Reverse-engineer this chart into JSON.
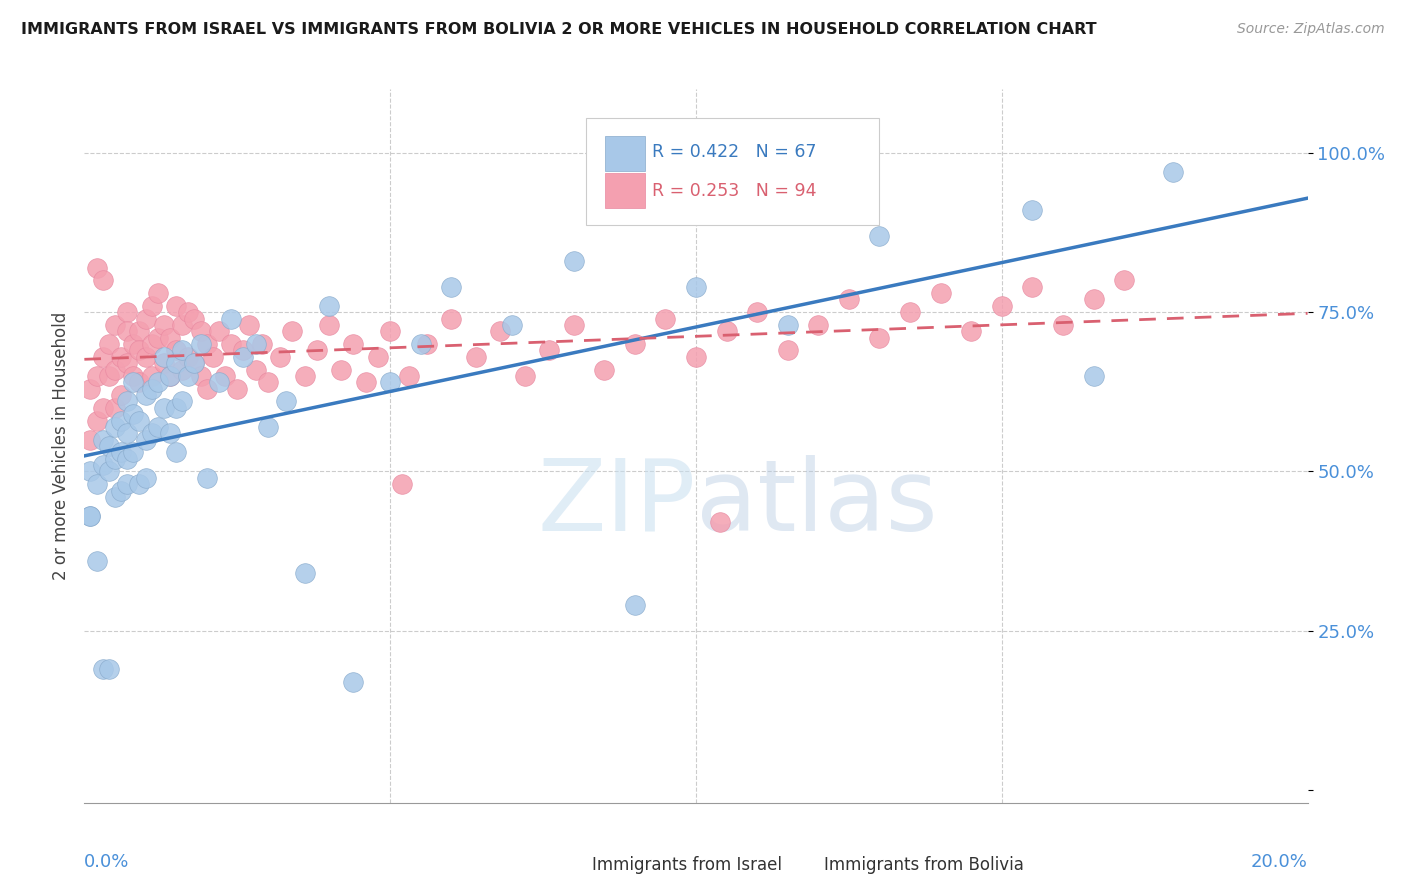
{
  "title": "IMMIGRANTS FROM ISRAEL VS IMMIGRANTS FROM BOLIVIA 2 OR MORE VEHICLES IN HOUSEHOLD CORRELATION CHART",
  "source": "Source: ZipAtlas.com",
  "ylabel": "2 or more Vehicles in Household",
  "watermark_zip": "ZIP",
  "watermark_atlas": "atlas",
  "legend_israel_text": "R = 0.422   N = 67",
  "legend_bolivia_text": "R = 0.253   N = 94",
  "color_israel": "#a8c8e8",
  "color_bolivia": "#f4a0b0",
  "line_israel": "#3a7abf",
  "line_bolivia": "#d96070",
  "color_tick_right": "#4a90d9",
  "xlim": [
    0.0,
    0.2
  ],
  "ylim": [
    -0.02,
    1.1
  ],
  "background_color": "#ffffff",
  "israel_x": [
    0.001,
    0.001,
    0.002,
    0.003,
    0.003,
    0.004,
    0.004,
    0.005,
    0.005,
    0.005,
    0.006,
    0.006,
    0.006,
    0.007,
    0.007,
    0.007,
    0.007,
    0.008,
    0.008,
    0.008,
    0.009,
    0.009,
    0.01,
    0.01,
    0.01,
    0.011,
    0.011,
    0.012,
    0.012,
    0.013,
    0.013,
    0.014,
    0.014,
    0.015,
    0.015,
    0.015,
    0.016,
    0.016,
    0.017,
    0.018,
    0.019,
    0.02,
    0.022,
    0.024,
    0.026,
    0.028,
    0.03,
    0.033,
    0.036,
    0.04,
    0.044,
    0.05,
    0.055,
    0.06,
    0.07,
    0.08,
    0.09,
    0.1,
    0.115,
    0.13,
    0.155,
    0.165,
    0.178,
    0.001,
    0.002,
    0.003,
    0.004
  ],
  "israel_y": [
    0.43,
    0.5,
    0.48,
    0.51,
    0.55,
    0.5,
    0.54,
    0.52,
    0.46,
    0.57,
    0.53,
    0.58,
    0.47,
    0.61,
    0.56,
    0.52,
    0.48,
    0.59,
    0.53,
    0.64,
    0.58,
    0.48,
    0.62,
    0.55,
    0.49,
    0.63,
    0.56,
    0.64,
    0.57,
    0.68,
    0.6,
    0.65,
    0.56,
    0.67,
    0.6,
    0.53,
    0.69,
    0.61,
    0.65,
    0.67,
    0.7,
    0.49,
    0.64,
    0.74,
    0.68,
    0.7,
    0.57,
    0.61,
    0.34,
    0.76,
    0.17,
    0.64,
    0.7,
    0.79,
    0.73,
    0.83,
    0.29,
    0.79,
    0.73,
    0.87,
    0.91,
    0.65,
    0.97,
    0.43,
    0.36,
    0.19,
    0.19
  ],
  "bolivia_x": [
    0.001,
    0.001,
    0.002,
    0.002,
    0.003,
    0.003,
    0.004,
    0.004,
    0.005,
    0.005,
    0.005,
    0.006,
    0.006,
    0.007,
    0.007,
    0.007,
    0.008,
    0.008,
    0.009,
    0.009,
    0.009,
    0.01,
    0.01,
    0.011,
    0.011,
    0.011,
    0.012,
    0.012,
    0.013,
    0.013,
    0.014,
    0.014,
    0.015,
    0.015,
    0.016,
    0.016,
    0.017,
    0.017,
    0.018,
    0.018,
    0.019,
    0.019,
    0.02,
    0.02,
    0.021,
    0.022,
    0.023,
    0.024,
    0.025,
    0.026,
    0.027,
    0.028,
    0.029,
    0.03,
    0.032,
    0.034,
    0.036,
    0.038,
    0.04,
    0.042,
    0.044,
    0.046,
    0.048,
    0.05,
    0.053,
    0.056,
    0.06,
    0.064,
    0.068,
    0.072,
    0.076,
    0.08,
    0.085,
    0.09,
    0.095,
    0.1,
    0.105,
    0.11,
    0.115,
    0.12,
    0.125,
    0.13,
    0.135,
    0.14,
    0.145,
    0.15,
    0.155,
    0.16,
    0.165,
    0.17,
    0.104,
    0.052,
    0.002,
    0.003
  ],
  "bolivia_y": [
    0.55,
    0.63,
    0.58,
    0.65,
    0.6,
    0.68,
    0.65,
    0.7,
    0.6,
    0.66,
    0.73,
    0.62,
    0.68,
    0.75,
    0.67,
    0.72,
    0.7,
    0.65,
    0.72,
    0.64,
    0.69,
    0.74,
    0.68,
    0.76,
    0.7,
    0.65,
    0.78,
    0.71,
    0.73,
    0.67,
    0.71,
    0.65,
    0.76,
    0.69,
    0.73,
    0.66,
    0.75,
    0.68,
    0.74,
    0.67,
    0.72,
    0.65,
    0.7,
    0.63,
    0.68,
    0.72,
    0.65,
    0.7,
    0.63,
    0.69,
    0.73,
    0.66,
    0.7,
    0.64,
    0.68,
    0.72,
    0.65,
    0.69,
    0.73,
    0.66,
    0.7,
    0.64,
    0.68,
    0.72,
    0.65,
    0.7,
    0.74,
    0.68,
    0.72,
    0.65,
    0.69,
    0.73,
    0.66,
    0.7,
    0.74,
    0.68,
    0.72,
    0.75,
    0.69,
    0.73,
    0.77,
    0.71,
    0.75,
    0.78,
    0.72,
    0.76,
    0.79,
    0.73,
    0.77,
    0.8,
    0.42,
    0.48,
    0.82,
    0.8
  ]
}
